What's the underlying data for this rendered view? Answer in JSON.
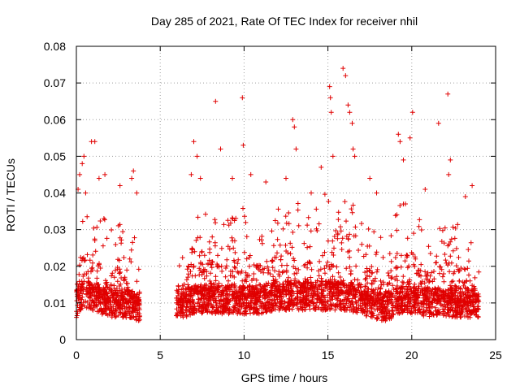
{
  "chart_data": {
    "type": "scatter",
    "title": "Day 285 of 2021, Rate Of TEC Index for receiver nhil",
    "xlabel": "GPS time / hours",
    "ylabel": "ROTI / TECUs",
    "xlim": [
      0,
      25
    ],
    "ylim": [
      0,
      0.08
    ],
    "xticks": [
      0,
      5,
      10,
      15,
      20,
      25
    ],
    "xtick_labels": [
      "0",
      "5",
      "10",
      "15",
      "20",
      "25"
    ],
    "yticks": [
      0,
      0.01,
      0.02,
      0.03,
      0.04,
      0.05,
      0.06,
      0.07,
      0.08
    ],
    "ytick_labels": [
      "0",
      "0.01",
      "0.02",
      "0.03",
      "0.04",
      "0.05",
      "0.06",
      "0.07",
      "0.08"
    ],
    "grid": true,
    "marker": "plus",
    "series": [
      {
        "name": "ROTI",
        "color": "#e00000",
        "segments": [
          {
            "start": 0.0,
            "end": 3.8
          },
          {
            "start": 5.95,
            "end": 24.0
          }
        ],
        "profile": [
          [
            0.0,
            0.01,
            0.014
          ],
          [
            0.25,
            0.012,
            0.022
          ],
          [
            0.5,
            0.012,
            0.024
          ],
          [
            1.0,
            0.012,
            0.024
          ],
          [
            1.5,
            0.011,
            0.022
          ],
          [
            2.0,
            0.01,
            0.02
          ],
          [
            2.5,
            0.01,
            0.02
          ],
          [
            3.0,
            0.01,
            0.018
          ],
          [
            3.5,
            0.009,
            0.016
          ],
          [
            3.8,
            0.009,
            0.014
          ],
          [
            5.95,
            0.01,
            0.014
          ],
          [
            6.5,
            0.01,
            0.018
          ],
          [
            7.0,
            0.011,
            0.028
          ],
          [
            7.5,
            0.011,
            0.024
          ],
          [
            8.0,
            0.011,
            0.022
          ],
          [
            9.0,
            0.011,
            0.022
          ],
          [
            10.0,
            0.011,
            0.024
          ],
          [
            11.0,
            0.011,
            0.022
          ],
          [
            12.0,
            0.012,
            0.024
          ],
          [
            13.0,
            0.012,
            0.028
          ],
          [
            14.0,
            0.012,
            0.024
          ],
          [
            15.0,
            0.012,
            0.03
          ],
          [
            16.0,
            0.012,
            0.03
          ],
          [
            17.0,
            0.011,
            0.024
          ],
          [
            18.0,
            0.009,
            0.016
          ],
          [
            18.5,
            0.009,
            0.016
          ],
          [
            19.3,
            0.011,
            0.026
          ],
          [
            20.0,
            0.011,
            0.024
          ],
          [
            21.0,
            0.01,
            0.018
          ],
          [
            22.0,
            0.01,
            0.022
          ],
          [
            23.0,
            0.01,
            0.02
          ],
          [
            24.0,
            0.01,
            0.016
          ]
        ],
        "outliers": [
          [
            0.1,
            0.041
          ],
          [
            0.2,
            0.045
          ],
          [
            0.35,
            0.048
          ],
          [
            0.45,
            0.05
          ],
          [
            0.55,
            0.04
          ],
          [
            0.9,
            0.054
          ],
          [
            1.1,
            0.054
          ],
          [
            1.35,
            0.044
          ],
          [
            1.7,
            0.045
          ],
          [
            2.6,
            0.042
          ],
          [
            3.3,
            0.044
          ],
          [
            3.4,
            0.046
          ],
          [
            3.6,
            0.04
          ],
          [
            7.0,
            0.054
          ],
          [
            7.2,
            0.05
          ],
          [
            8.3,
            0.065
          ],
          [
            8.6,
            0.052
          ],
          [
            9.3,
            0.044
          ],
          [
            9.9,
            0.066
          ],
          [
            9.95,
            0.053
          ],
          [
            10.4,
            0.045
          ],
          [
            12.9,
            0.06
          ],
          [
            13.0,
            0.058
          ],
          [
            13.1,
            0.052
          ],
          [
            14.6,
            0.047
          ],
          [
            15.1,
            0.069
          ],
          [
            15.15,
            0.066
          ],
          [
            15.2,
            0.062
          ],
          [
            15.3,
            0.05
          ],
          [
            15.9,
            0.074
          ],
          [
            16.05,
            0.072
          ],
          [
            16.2,
            0.064
          ],
          [
            16.3,
            0.062
          ],
          [
            16.45,
            0.059
          ],
          [
            16.5,
            0.052
          ],
          [
            16.6,
            0.05
          ],
          [
            17.5,
            0.044
          ],
          [
            19.2,
            0.056
          ],
          [
            19.3,
            0.054
          ],
          [
            19.5,
            0.049
          ],
          [
            19.9,
            0.055
          ],
          [
            20.05,
            0.062
          ],
          [
            21.6,
            0.059
          ],
          [
            22.15,
            0.067
          ],
          [
            22.3,
            0.049
          ],
          [
            22.2,
            0.045
          ],
          [
            23.2,
            0.039
          ],
          [
            23.6,
            0.042
          ],
          [
            6.85,
            0.045
          ],
          [
            7.4,
            0.044
          ],
          [
            11.3,
            0.043
          ],
          [
            12.5,
            0.044
          ],
          [
            14.0,
            0.04
          ],
          [
            17.9,
            0.04
          ],
          [
            20.8,
            0.041
          ]
        ]
      }
    ]
  }
}
